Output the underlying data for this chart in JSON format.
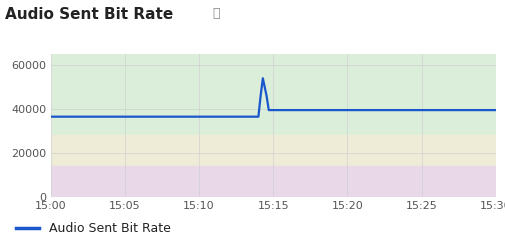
{
  "title": "Audio Sent Bit Rate",
  "info_icon": "ⓘ",
  "ylim": [
    0,
    65000
  ],
  "yticks": [
    0,
    20000,
    40000,
    60000
  ],
  "xtick_labels": [
    "15:00",
    "15:05",
    "15:10",
    "15:15",
    "15:20",
    "15:25",
    "15:30"
  ],
  "xtick_positions": [
    0,
    5,
    10,
    15,
    20,
    25,
    30
  ],
  "xlim": [
    0,
    30
  ],
  "bg_green": {
    "ymin": 28000,
    "ymax": 65000,
    "color": "#daeeda"
  },
  "bg_yellow": {
    "ymin": 14000,
    "ymax": 28000,
    "color": "#eeecd6"
  },
  "bg_purple": {
    "ymin": 0,
    "ymax": 14000,
    "color": "#e8d8e8"
  },
  "line_x": [
    0,
    14.0,
    14.15,
    14.3,
    14.55,
    14.7,
    30
  ],
  "line_y": [
    36500,
    36500,
    46000,
    54000,
    46000,
    39500,
    39500
  ],
  "line_color": "#1a56cc",
  "line_width": 1.6,
  "legend_label": "Audio Sent Bit Rate",
  "background_color": "#ffffff",
  "grid_color": "#d0d0d0",
  "title_fontsize": 11,
  "tick_fontsize": 8,
  "legend_fontsize": 9
}
